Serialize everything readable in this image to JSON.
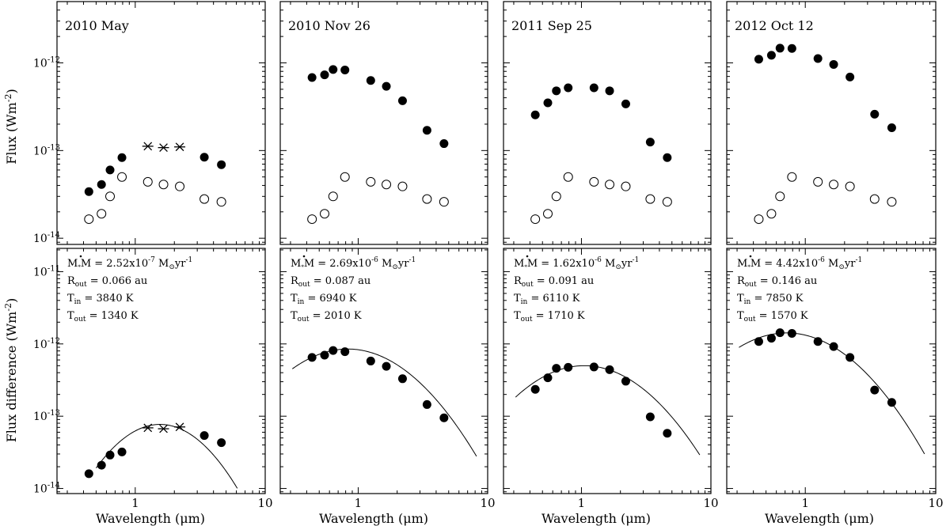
{
  "figure": {
    "top_ylabel": "Flux (Wm",
    "top_ylabel_sup": "-2",
    "bottom_ylabel": "Flux difference (Wm",
    "bottom_ylabel_sup": "-2",
    "xlabel": "Wavelength (μm)"
  },
  "chart_data": {
    "type": "scatter",
    "x_scale": "log",
    "y_scale": "log",
    "x_ticks": [
      {
        "value": 1,
        "label": "1"
      },
      {
        "value": 10,
        "label": "10"
      }
    ],
    "top_ylim": [
      8.5e-15,
      5e-12
    ],
    "bottom_ylim": [
      8.5e-15,
      2.1e-11
    ],
    "top_y_ticks": [
      {
        "value": 1e-14,
        "label": "10",
        "exp": "-14"
      },
      {
        "value": 1e-13,
        "label": "10",
        "exp": "-13"
      },
      {
        "value": 1e-12,
        "label": "10",
        "exp": "-12"
      }
    ],
    "bottom_y_ticks": [
      {
        "value": 1e-14,
        "label": "10",
        "exp": "-14"
      },
      {
        "value": 1e-13,
        "label": "10",
        "exp": "-13"
      },
      {
        "value": 1e-12,
        "label": "10",
        "exp": "-12"
      },
      {
        "value": 1e-11,
        "label": "10",
        "exp": "-11"
      }
    ],
    "panels": [
      {
        "date": "2010 May",
        "xlim": [
          0.25,
          10
        ],
        "observed_x": [
          0.44,
          0.55,
          0.64,
          0.79,
          3.4,
          4.6
        ],
        "observed_y": [
          3.4e-14,
          4.1e-14,
          6e-14,
          8.3e-14,
          8.4e-14,
          6.9e-14
        ],
        "observed_star_x": [
          1.25,
          1.65,
          2.2
        ],
        "observed_star_y": [
          1.12e-13,
          1.08e-13,
          1.1e-13
        ],
        "quiescent_x": [
          0.44,
          0.55,
          0.64,
          0.79,
          1.25,
          1.65,
          2.2,
          3.4,
          4.6
        ],
        "quiescent_y": [
          1.65e-14,
          1.9e-14,
          3e-14,
          5e-14,
          4.4e-14,
          4.1e-14,
          3.9e-14,
          2.8e-14,
          2.6e-14
        ],
        "difference_x": [
          0.44,
          0.55,
          0.64,
          0.79,
          3.4,
          4.6
        ],
        "difference_y": [
          1.6e-14,
          2.1e-14,
          2.9e-14,
          3.2e-14,
          5.4e-14,
          4.3e-14
        ],
        "difference_star_x": [
          1.25,
          1.65,
          2.2
        ],
        "difference_star_y": [
          6.9e-14,
          6.7e-14,
          7.1e-14
        ],
        "model": {
          "x0": 1.55,
          "peak": 7.7e-14,
          "curv": 2.5,
          "x_start": 0.5,
          "x_end": 6.1
        },
        "param_mdot_label": "M",
        "param_mdot_value": "M = 2.52x10",
        "param_mdot_exp": "-7",
        "param_mdot_units": " M",
        "param_mdot_units_end": "yr",
        "param_mdot_units_exp": "-1",
        "param_rout_label": "R",
        "param_rout_sub": "out",
        "param_rout_value": " = 0.066 au",
        "param_tin_label": "T",
        "param_tin_sub": "in",
        "param_tin_value": " = 3840 K",
        "param_tout_label": "T",
        "param_tout_sub": "out",
        "param_tout_value": " = 1340 K"
      },
      {
        "date": "2010 Nov 26",
        "xlim": [
          0.25,
          10
        ],
        "observed_x": [
          0.44,
          0.55,
          0.64,
          0.79,
          1.25,
          1.65,
          2.2,
          3.4,
          4.6
        ],
        "observed_y": [
          6.8e-13,
          7.3e-13,
          8.4e-13,
          8.3e-13,
          6.3e-13,
          5.4e-13,
          3.7e-13,
          1.7e-13,
          1.2e-13
        ],
        "observed_star_x": [],
        "observed_star_y": [],
        "quiescent_x": [
          0.44,
          0.55,
          0.64,
          0.79,
          1.25,
          1.65,
          2.2,
          3.4,
          4.6
        ],
        "quiescent_y": [
          1.65e-14,
          1.9e-14,
          3e-14,
          5e-14,
          4.4e-14,
          4.1e-14,
          3.9e-14,
          2.8e-14,
          2.6e-14
        ],
        "difference_x": [
          0.44,
          0.55,
          0.64,
          0.79,
          1.25,
          1.65,
          2.2,
          3.4,
          4.6
        ],
        "difference_y": [
          6.5e-13,
          7e-13,
          8.1e-13,
          7.8e-13,
          5.8e-13,
          4.9e-13,
          3.3e-13,
          1.45e-13,
          9.5e-14
        ],
        "difference_star_x": [],
        "difference_star_y": [],
        "model": {
          "x0": 0.83,
          "peak": 8.5e-13,
          "curv": 1.5,
          "x_start": 0.31,
          "x_end": 8.2
        },
        "param_mdot_label": "M",
        "param_mdot_value": "M = 2.69x10",
        "param_mdot_exp": "-6",
        "param_mdot_units": " M",
        "param_mdot_units_end": "yr",
        "param_mdot_units_exp": "-1",
        "param_rout_label": "R",
        "param_rout_sub": "out",
        "param_rout_value": " = 0.087 au",
        "param_tin_label": "T",
        "param_tin_sub": "in",
        "param_tin_value": " = 6940 K",
        "param_tout_label": "T",
        "param_tout_sub": "out",
        "param_tout_value": " = 2010 K"
      },
      {
        "date": "2011 Sep 25",
        "xlim": [
          0.25,
          10
        ],
        "observed_x": [
          0.44,
          0.55,
          0.64,
          0.79,
          1.25,
          1.65,
          2.2,
          3.4,
          4.6
        ],
        "observed_y": [
          2.55e-13,
          3.5e-13,
          4.8e-13,
          5.2e-13,
          5.2e-13,
          4.8e-13,
          3.4e-13,
          1.25e-13,
          8.3e-14
        ],
        "observed_star_x": [],
        "observed_star_y": [],
        "quiescent_x": [
          0.44,
          0.55,
          0.64,
          0.79,
          1.25,
          1.65,
          2.2,
          3.4,
          4.6
        ],
        "quiescent_y": [
          1.65e-14,
          1.9e-14,
          3e-14,
          5e-14,
          4.4e-14,
          4.1e-14,
          3.9e-14,
          2.8e-14,
          2.6e-14
        ],
        "difference_x": [
          0.44,
          0.55,
          0.64,
          0.79,
          1.25,
          1.65,
          2.2,
          3.4,
          4.6
        ],
        "difference_y": [
          2.35e-13,
          3.4e-13,
          4.6e-13,
          4.75e-13,
          4.8e-13,
          4.4e-13,
          3.05e-13,
          9.8e-14,
          5.8e-14
        ],
        "difference_star_x": [],
        "difference_star_y": [],
        "model": {
          "x0": 1.05,
          "peak": 5e-13,
          "curv": 1.55,
          "x_start": 0.31,
          "x_end": 8.2
        },
        "param_mdot_label": "M",
        "param_mdot_value": "M = 1.62x10",
        "param_mdot_exp": "-6",
        "param_mdot_units": " M",
        "param_mdot_units_end": "yr",
        "param_mdot_units_exp": "-1",
        "param_rout_label": "R",
        "param_rout_sub": "out",
        "param_rout_value": " = 0.091 au",
        "param_tin_label": "T",
        "param_tin_sub": "in",
        "param_tin_value": " = 6110 K",
        "param_tout_label": "T",
        "param_tout_sub": "out",
        "param_tout_value": " = 1710 K"
      },
      {
        "date": "2012 Oct 12",
        "xlim": [
          0.25,
          10
        ],
        "observed_x": [
          0.44,
          0.55,
          0.64,
          0.79,
          1.25,
          1.65,
          2.2,
          3.4,
          4.6
        ],
        "observed_y": [
          1.1e-12,
          1.22e-12,
          1.47e-12,
          1.46e-12,
          1.12e-12,
          9.6e-13,
          6.9e-13,
          2.6e-13,
          1.82e-13
        ],
        "observed_star_x": [],
        "observed_star_y": [],
        "quiescent_x": [
          0.44,
          0.55,
          0.64,
          0.79,
          1.25,
          1.65,
          2.2,
          3.4,
          4.6
        ],
        "quiescent_y": [
          1.65e-14,
          1.9e-14,
          3e-14,
          5e-14,
          4.4e-14,
          4.1e-14,
          3.9e-14,
          2.8e-14,
          2.6e-14
        ],
        "difference_x": [
          0.44,
          0.55,
          0.64,
          0.79,
          1.25,
          1.65,
          2.2,
          3.4,
          4.6
        ],
        "difference_y": [
          1.08e-12,
          1.2e-12,
          1.43e-12,
          1.4e-12,
          1.08e-12,
          9.2e-13,
          6.5e-13,
          2.3e-13,
          1.55e-13
        ],
        "difference_star_x": [],
        "difference_star_y": [],
        "model": {
          "x0": 0.72,
          "peak": 1.42e-12,
          "curv": 1.5,
          "x_start": 0.31,
          "x_end": 8.2
        },
        "param_mdot_label": "M",
        "param_mdot_value": "M = 4.42x10",
        "param_mdot_exp": "-6",
        "param_mdot_units": " M",
        "param_mdot_units_end": "yr",
        "param_mdot_units_exp": "-1",
        "param_rout_label": "R",
        "param_rout_sub": "out",
        "param_rout_value": " = 0.146 au",
        "param_tin_label": "T",
        "param_tin_sub": "in",
        "param_tin_value": " = 7850 K",
        "param_tout_label": "T",
        "param_tout_sub": "out",
        "param_tout_value": " = 1570 K"
      }
    ]
  }
}
